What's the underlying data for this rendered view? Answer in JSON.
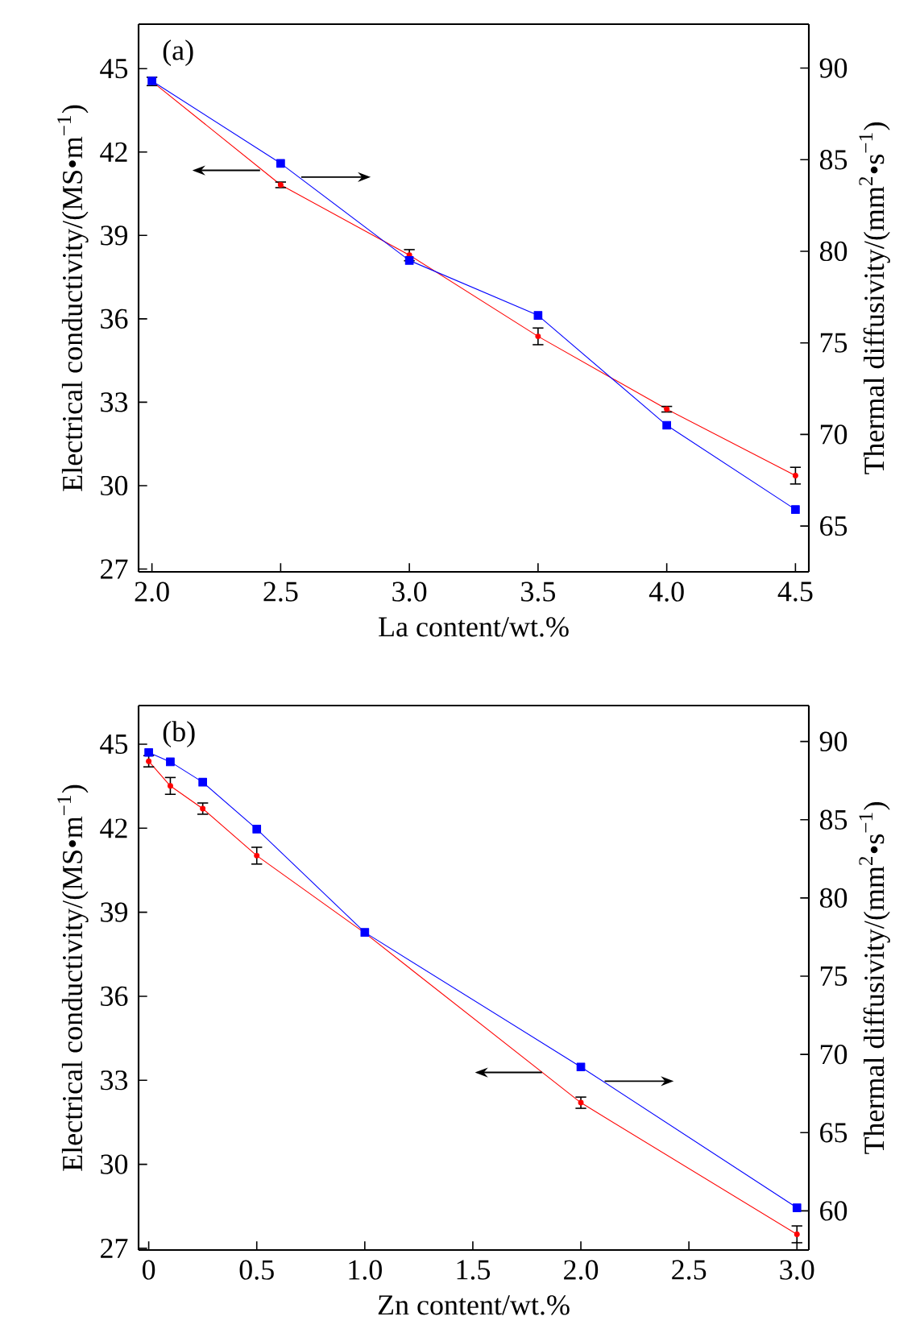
{
  "chart_data": [
    {
      "type": "line",
      "xlabel": "La content/wt.%",
      "ylabel": "Electrical conductivity/(MS•m$^{−1}$)",
      "y2label": "Thermal diffusivity/(mm$^{2}$•s$^{−1}$)",
      "annotations": [
        "(a)"
      ],
      "x": [
        2.0,
        2.5,
        3.0,
        3.5,
        4.0,
        4.5
      ],
      "xlim": [
        1.948,
        4.552
      ],
      "xticks": [
        {
          "value": 2.0,
          "label": "2.0"
        },
        {
          "value": 2.5,
          "label": "2.5"
        },
        {
          "value": 3.0,
          "label": "3.0"
        },
        {
          "value": 3.5,
          "label": "3.5"
        },
        {
          "value": 4.0,
          "label": "4.0"
        },
        {
          "value": 4.5,
          "label": "4.5"
        }
      ],
      "ylim": [
        26.9,
        46.6
      ],
      "yticks": [
        27,
        30,
        33,
        36,
        39,
        42,
        45
      ],
      "y2lim": [
        62.5,
        92.4
      ],
      "y2ticks": [
        65,
        70,
        75,
        80,
        85,
        90
      ],
      "series": [
        {
          "color": "#ff0000",
          "marker": "circle",
          "values": [
            44.54,
            40.82,
            38.29,
            35.37,
            32.75,
            30.36
          ],
          "errors": [
            0.15,
            0.1,
            0.2,
            0.3,
            0.1,
            0.3
          ]
        },
        {
          "color": "#0000ff",
          "marker": "square",
          "axis": "y2",
          "values": [
            89.3,
            84.8,
            79.5,
            76.5,
            70.5,
            65.9
          ]
        }
      ]
    },
    {
      "type": "line",
      "xlabel": "Zn content/wt.%",
      "ylabel": "Electrical conductivity/(MS•m$^{−1}$)",
      "y2label": "Thermal diffusivity/(mm$^{2}$•s$^{−1}$)",
      "annotations": [
        "(b)"
      ],
      "x": [
        0,
        0.1,
        0.25,
        0.5,
        1.0,
        2.0,
        3.0
      ],
      "xlim": [
        -0.047,
        3.055
      ],
      "xticks": [
        0,
        0.5,
        {
          "value": 1.0,
          "label": "1.0"
        },
        1.5,
        {
          "value": 2.0,
          "label": "2.0"
        },
        2.5,
        {
          "value": 3.0,
          "label": "3.0"
        }
      ],
      "ylim": [
        26.94,
        46.38
      ],
      "yticks": [
        27,
        30,
        33,
        36,
        39,
        42,
        45
      ],
      "y2lim": [
        57.5,
        92.3
      ],
      "y2ticks": [
        60,
        65,
        70,
        75,
        80,
        85,
        90
      ],
      "series": [
        {
          "color": "#ff0000",
          "marker": "circle",
          "values": [
            44.39,
            43.51,
            42.7,
            41.02,
            38.26,
            32.2,
            27.5
          ],
          "errors": [
            0.2,
            0.3,
            0.2,
            0.3,
            null,
            0.2,
            0.3
          ]
        },
        {
          "color": "#0000ff",
          "marker": "square",
          "axis": "y2",
          "values": [
            89.3,
            88.7,
            87.4,
            84.4,
            77.8,
            69.2,
            60.2
          ]
        }
      ]
    }
  ]
}
